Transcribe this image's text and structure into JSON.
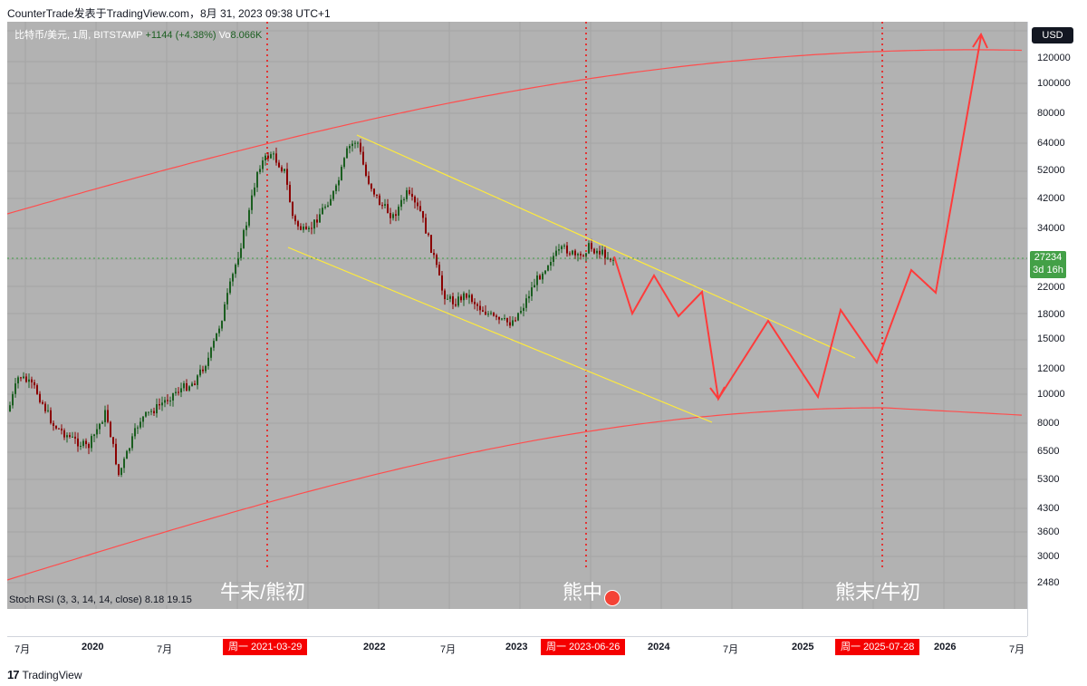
{
  "header": {
    "text": "CounterTrade发表于TradingView.com，8月 31, 2023 09:38 UTC+1"
  },
  "legend": {
    "symbol": "比特币/美元, 1周, BITSTAMP",
    "change": "+1144 (+4.38%)",
    "vol_label": "Vo",
    "vol_value": "8.066K"
  },
  "stoch": {
    "label": "Stoch RSI (3, 3, 14, 14, close)",
    "k": "8.18",
    "d": "19.15"
  },
  "price_axis": {
    "currency": "USD",
    "ticks": [
      "120000",
      "100000",
      "80000",
      "64000",
      "52000",
      "42000",
      "34000",
      "22000",
      "18000",
      "15000",
      "12000",
      "10000",
      "8000",
      "6500",
      "5300",
      "4300",
      "3600",
      "3000",
      "2480"
    ],
    "last_price": "27234",
    "countdown": "3d 16h"
  },
  "time_axis": {
    "labels": [
      {
        "text": "7月",
        "year": false
      },
      {
        "text": "2020",
        "year": true
      },
      {
        "text": "7月",
        "year": false
      },
      {
        "text": "2022",
        "year": true
      },
      {
        "text": "7月",
        "year": false
      },
      {
        "text": "2023",
        "year": true
      },
      {
        "text": "2024",
        "year": true
      },
      {
        "text": "7月",
        "year": false
      },
      {
        "text": "2025",
        "year": true
      },
      {
        "text": "2026",
        "year": true
      },
      {
        "text": "7月",
        "year": false
      }
    ],
    "date_tags": [
      "周一  2021-03-29",
      "周一  2023-06-26",
      "周一  2025-07-28"
    ]
  },
  "phases": [
    "牛末/熊初",
    "熊中",
    "熊末/牛初"
  ],
  "colors": {
    "chart_bg": "#b2b2b2",
    "bull": "#1b5e20",
    "bear": "#8b0000",
    "curve": "#ff4d4d",
    "channel": "#ffeb3b",
    "projection": "#ff3b3b",
    "accent": "#f50000"
  },
  "footer": {
    "brand": "TradingView"
  }
}
